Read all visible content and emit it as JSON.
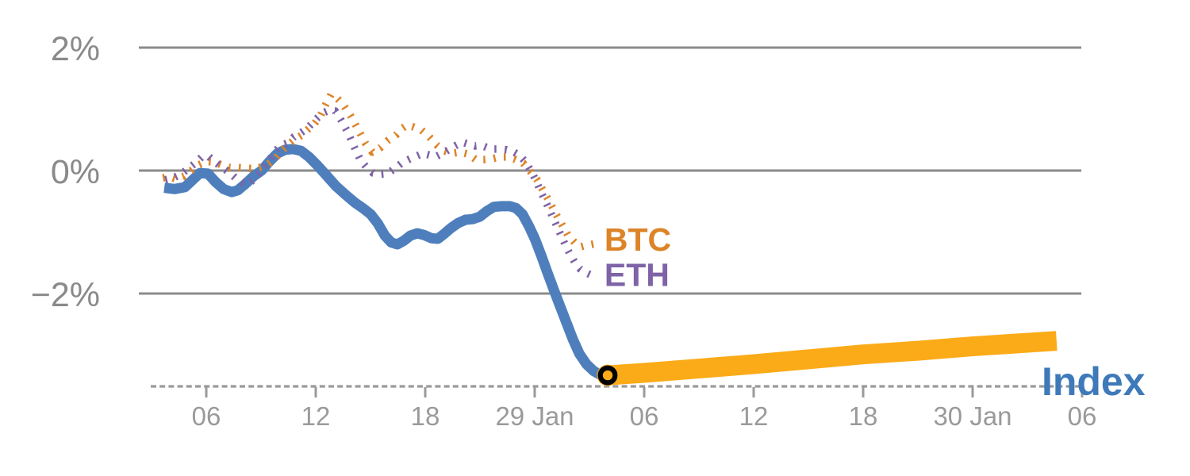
{
  "chart_data": {
    "type": "line",
    "title": "",
    "description": "Intraday percent-change comparison of a crypto Index versus BTC and ETH, with the Index continuing as a highlighted orange segment after the current-time marker",
    "x_axis": {
      "note": "t = hours since 28 Jan 00:00; ticks every 6 hours; midnight ticks labeled with date",
      "ticks": [
        {
          "t": 6,
          "label": "06"
        },
        {
          "t": 12,
          "label": "12"
        },
        {
          "t": 18,
          "label": "18"
        },
        {
          "t": 24,
          "label": "29 Jan"
        },
        {
          "t": 30,
          "label": "06"
        },
        {
          "t": 36,
          "label": "12"
        },
        {
          "t": 42,
          "label": "18"
        },
        {
          "t": 48,
          "label": "30 Jan"
        },
        {
          "t": 54,
          "label": "06"
        }
      ],
      "baseline_style": "dashed",
      "baseline_value_pct": -3.51
    },
    "y_axis": {
      "unit": "%",
      "grid": true,
      "ticks": [
        {
          "v": 2,
          "label": "2%"
        },
        {
          "v": 0,
          "label": "0%"
        },
        {
          "v": -2,
          "label": "−2%"
        }
      ],
      "range_pct": [
        -3.51,
        2.3
      ]
    },
    "series": [
      {
        "name": "Index",
        "color": "#4E7FBC",
        "style": "solid",
        "width": 13,
        "points": [
          [
            3.7,
            -0.28
          ],
          [
            4.27,
            -0.3
          ],
          [
            4.83,
            -0.27
          ],
          [
            5.26,
            -0.15
          ],
          [
            5.65,
            -0.04
          ],
          [
            6.09,
            -0.05
          ],
          [
            6.52,
            -0.19
          ],
          [
            6.95,
            -0.3
          ],
          [
            7.39,
            -0.35
          ],
          [
            7.73,
            -0.32
          ],
          [
            8.17,
            -0.21
          ],
          [
            8.6,
            -0.09
          ],
          [
            9.03,
            0.0
          ],
          [
            9.47,
            0.15
          ],
          [
            9.9,
            0.28
          ],
          [
            10.33,
            0.34
          ],
          [
            10.77,
            0.35
          ],
          [
            11.2,
            0.32
          ],
          [
            11.63,
            0.22
          ],
          [
            12.07,
            0.09
          ],
          [
            12.59,
            -0.08
          ],
          [
            13.1,
            -0.25
          ],
          [
            13.62,
            -0.39
          ],
          [
            14.14,
            -0.52
          ],
          [
            14.58,
            -0.61
          ],
          [
            15.01,
            -0.71
          ],
          [
            15.4,
            -0.86
          ],
          [
            15.79,
            -1.06
          ],
          [
            16.14,
            -1.17
          ],
          [
            16.48,
            -1.2
          ],
          [
            16.83,
            -1.14
          ],
          [
            17.18,
            -1.06
          ],
          [
            17.57,
            -1.02
          ],
          [
            17.96,
            -1.05
          ],
          [
            18.35,
            -1.1
          ],
          [
            18.69,
            -1.11
          ],
          [
            19.04,
            -1.03
          ],
          [
            19.43,
            -0.93
          ],
          [
            19.82,
            -0.85
          ],
          [
            20.21,
            -0.8
          ],
          [
            20.6,
            -0.79
          ],
          [
            20.99,
            -0.75
          ],
          [
            21.38,
            -0.66
          ],
          [
            21.77,
            -0.59
          ],
          [
            22.2,
            -0.58
          ],
          [
            22.64,
            -0.58
          ],
          [
            22.98,
            -0.61
          ],
          [
            23.33,
            -0.71
          ],
          [
            23.68,
            -0.9
          ],
          [
            24.02,
            -1.12
          ],
          [
            24.37,
            -1.39
          ],
          [
            24.72,
            -1.68
          ],
          [
            25.06,
            -1.95
          ],
          [
            25.41,
            -2.22
          ],
          [
            25.76,
            -2.49
          ],
          [
            26.1,
            -2.75
          ],
          [
            26.45,
            -2.98
          ],
          [
            26.84,
            -3.15
          ],
          [
            27.23,
            -3.26
          ],
          [
            27.58,
            -3.32
          ],
          [
            28.0,
            -3.33
          ]
        ]
      },
      {
        "name": "BTC",
        "color": "#DD8428",
        "style": "dotted",
        "width": 9.5,
        "points": [
          [
            3.62,
            -0.12
          ],
          [
            3.96,
            -0.1
          ],
          [
            4.35,
            -0.14
          ],
          [
            4.79,
            -0.09
          ],
          [
            5.18,
            0.0
          ],
          [
            5.57,
            0.09
          ],
          [
            6.0,
            0.15
          ],
          [
            6.43,
            0.14
          ],
          [
            6.87,
            0.09
          ],
          [
            7.3,
            0.05
          ],
          [
            7.73,
            0.05
          ],
          [
            8.17,
            0.04
          ],
          [
            8.69,
            0.03
          ],
          [
            9.03,
            0.06
          ],
          [
            9.38,
            0.1
          ],
          [
            9.77,
            0.19
          ],
          [
            10.12,
            0.32
          ],
          [
            10.46,
            0.41
          ],
          [
            10.81,
            0.5
          ],
          [
            11.2,
            0.57
          ],
          [
            11.54,
            0.66
          ],
          [
            11.89,
            0.75
          ],
          [
            12.24,
            0.88
          ],
          [
            12.54,
            1.07
          ],
          [
            12.84,
            1.24
          ],
          [
            13.19,
            1.17
          ],
          [
            13.49,
            1.08
          ],
          [
            13.93,
            0.88
          ],
          [
            14.32,
            0.67
          ],
          [
            14.71,
            0.45
          ],
          [
            15.1,
            0.3
          ],
          [
            15.53,
            0.37
          ],
          [
            15.96,
            0.49
          ],
          [
            16.4,
            0.58
          ],
          [
            16.7,
            0.68
          ],
          [
            17.0,
            0.74
          ],
          [
            17.35,
            0.71
          ],
          [
            17.78,
            0.66
          ],
          [
            18.22,
            0.55
          ],
          [
            18.65,
            0.41
          ],
          [
            19.04,
            0.32
          ],
          [
            19.47,
            0.28
          ],
          [
            19.91,
            0.3
          ],
          [
            20.34,
            0.27
          ],
          [
            20.77,
            0.18
          ],
          [
            21.21,
            0.18
          ],
          [
            21.64,
            0.19
          ],
          [
            22.07,
            0.22
          ],
          [
            22.51,
            0.22
          ],
          [
            22.94,
            0.18
          ],
          [
            23.37,
            0.12
          ],
          [
            23.72,
            0.0
          ],
          [
            24.11,
            -0.14
          ],
          [
            24.45,
            -0.32
          ],
          [
            24.8,
            -0.5
          ],
          [
            25.15,
            -0.7
          ],
          [
            25.49,
            -0.88
          ],
          [
            25.84,
            -1.06
          ],
          [
            26.19,
            -1.17
          ],
          [
            26.53,
            -1.24
          ],
          [
            26.92,
            -1.21
          ],
          [
            27.31,
            -1.19
          ]
        ]
      },
      {
        "name": "ETH",
        "color": "#7E63A6",
        "style": "dotted",
        "width": 9.5,
        "points": [
          [
            3.75,
            -0.15
          ],
          [
            4.18,
            -0.12
          ],
          [
            4.61,
            -0.06
          ],
          [
            5.0,
            0.03
          ],
          [
            5.39,
            0.12
          ],
          [
            5.78,
            0.23
          ],
          [
            6.13,
            0.23
          ],
          [
            6.48,
            0.14
          ],
          [
            6.87,
            0.05
          ],
          [
            7.26,
            -0.03
          ],
          [
            7.6,
            -0.12
          ],
          [
            7.95,
            -0.19
          ],
          [
            8.3,
            -0.22
          ],
          [
            8.64,
            -0.13
          ],
          [
            9.03,
            0.0
          ],
          [
            9.38,
            0.12
          ],
          [
            9.77,
            0.32
          ],
          [
            10.12,
            0.41
          ],
          [
            10.46,
            0.45
          ],
          [
            10.81,
            0.55
          ],
          [
            11.16,
            0.61
          ],
          [
            11.5,
            0.68
          ],
          [
            11.81,
            0.77
          ],
          [
            12.11,
            0.86
          ],
          [
            12.41,
            0.94
          ],
          [
            12.72,
            0.98
          ],
          [
            13.06,
            0.97
          ],
          [
            13.41,
            0.81
          ],
          [
            13.76,
            0.62
          ],
          [
            14.1,
            0.39
          ],
          [
            14.45,
            0.17
          ],
          [
            14.79,
            0.05
          ],
          [
            15.14,
            -0.04
          ],
          [
            15.53,
            -0.06
          ],
          [
            15.92,
            -0.05
          ],
          [
            16.31,
            0.03
          ],
          [
            16.7,
            0.12
          ],
          [
            17.09,
            0.18
          ],
          [
            17.48,
            0.23
          ],
          [
            17.87,
            0.28
          ],
          [
            18.26,
            0.25
          ],
          [
            18.61,
            0.23
          ],
          [
            18.95,
            0.28
          ],
          [
            19.34,
            0.35
          ],
          [
            19.69,
            0.41
          ],
          [
            20.04,
            0.46
          ],
          [
            20.38,
            0.43
          ],
          [
            20.73,
            0.4
          ],
          [
            21.08,
            0.41
          ],
          [
            21.42,
            0.37
          ],
          [
            21.77,
            0.35
          ],
          [
            22.12,
            0.35
          ],
          [
            22.46,
            0.34
          ],
          [
            22.81,
            0.31
          ],
          [
            23.16,
            0.25
          ],
          [
            23.5,
            0.14
          ],
          [
            23.81,
            -0.01
          ],
          [
            24.11,
            -0.19
          ],
          [
            24.41,
            -0.39
          ],
          [
            24.67,
            -0.55
          ],
          [
            24.93,
            -0.72
          ],
          [
            25.19,
            -0.89
          ],
          [
            25.45,
            -1.06
          ],
          [
            25.71,
            -1.23
          ],
          [
            25.97,
            -1.38
          ],
          [
            26.23,
            -1.51
          ],
          [
            26.49,
            -1.6
          ],
          [
            26.79,
            -1.66
          ],
          [
            27.1,
            -1.7
          ],
          [
            27.4,
            -1.72
          ]
        ]
      },
      {
        "name": "Index (continued)",
        "color": "#FBAB18",
        "style": "solid",
        "width": 25,
        "points": [
          [
            28.0,
            -3.33
          ],
          [
            30.0,
            -3.29
          ],
          [
            33.0,
            -3.22
          ],
          [
            36.0,
            -3.15
          ],
          [
            39.0,
            -3.07
          ],
          [
            42.0,
            -2.99
          ],
          [
            45.0,
            -2.93
          ],
          [
            48.0,
            -2.86
          ],
          [
            50.5,
            -2.81
          ],
          [
            52.6,
            -2.77
          ]
        ]
      }
    ],
    "marker": {
      "name": "current-point",
      "t": 28.0,
      "v": -3.33,
      "fill": "#FBAB18",
      "ring": "#000000"
    },
    "labels": [
      {
        "id": "btc",
        "text": "BTC",
        "t": 27.82,
        "v": -1.3,
        "color": "#DD8428",
        "size": 41
      },
      {
        "id": "eth",
        "text": "ETH",
        "t": 27.82,
        "v": -1.88,
        "color": "#7E63A6",
        "size": 41
      },
      {
        "id": "index",
        "text": "Index",
        "t": 51.78,
        "v": -3.65,
        "color": "#3E79B9",
        "size": 50
      }
    ],
    "colors": {
      "grid": "#8B8B8B",
      "axis": "#9A9A9A",
      "y_tick_text": "#8A8A8A",
      "x_tick_text": "#9A9A9A",
      "background": "#FFFFFF"
    }
  }
}
